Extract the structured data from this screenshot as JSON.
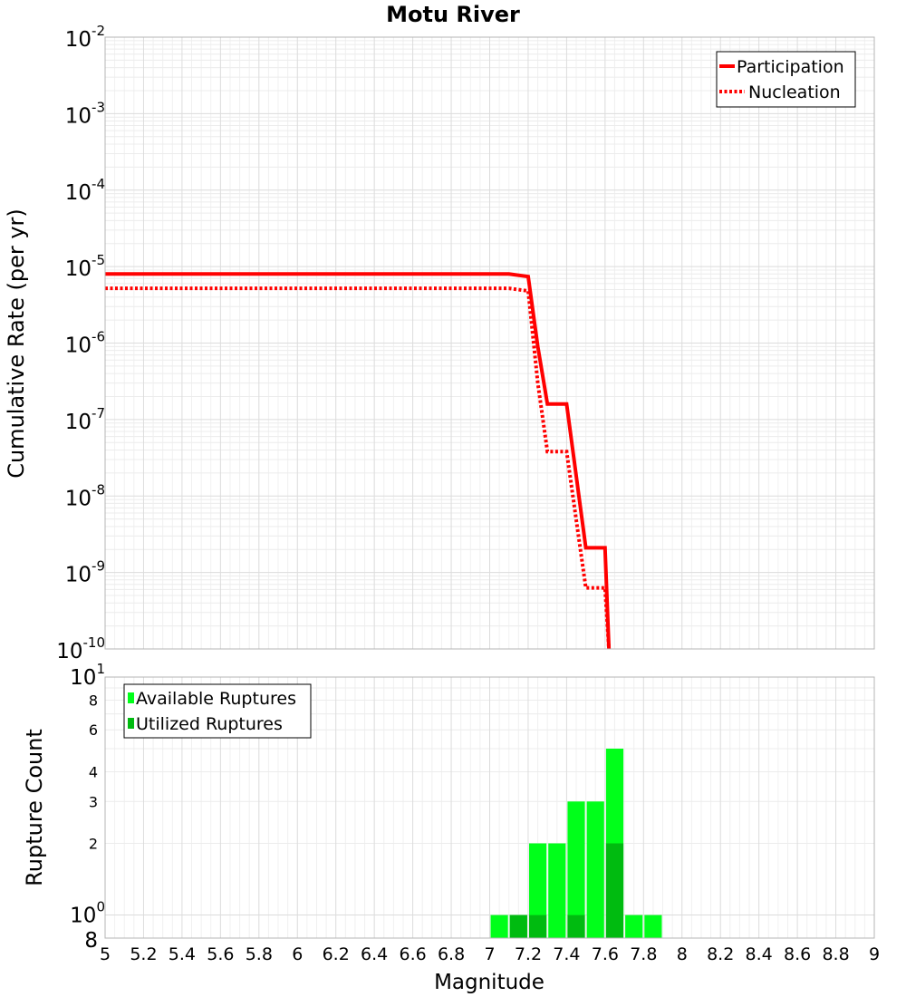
{
  "chart_data": [
    {
      "type": "line",
      "title": "Motu River",
      "ylabel": "Cumulative Rate (per yr)",
      "yscale": "log",
      "ylim": [
        1e-10,
        0.01
      ],
      "xlim": [
        5,
        9
      ],
      "grid": true,
      "legend_position": "top-right",
      "y_ticks": [
        {
          "base": "10",
          "exp": "-10"
        },
        {
          "base": "10",
          "exp": "-9"
        },
        {
          "base": "10",
          "exp": "-8"
        },
        {
          "base": "10",
          "exp": "-7"
        },
        {
          "base": "10",
          "exp": "-6"
        },
        {
          "base": "10",
          "exp": "-5"
        },
        {
          "base": "10",
          "exp": "-4"
        },
        {
          "base": "10",
          "exp": "-3"
        },
        {
          "base": "10",
          "exp": "-2"
        }
      ],
      "series": [
        {
          "name": "Participation",
          "style": "solid",
          "color": "#ff0000",
          "x": [
            5.0,
            7.1,
            7.2,
            7.25,
            7.3,
            7.4,
            7.5,
            7.6,
            7.62
          ],
          "y": [
            8e-06,
            8e-06,
            7.4e-06,
            9e-07,
            1.6e-07,
            1.6e-07,
            2.1e-09,
            2.1e-09,
            1e-10
          ]
        },
        {
          "name": "Nucleation",
          "style": "dotted",
          "color": "#ff0000",
          "x": [
            5.0,
            7.1,
            7.2,
            7.25,
            7.3,
            7.4,
            7.5,
            7.6,
            7.62
          ],
          "y": [
            5.2e-06,
            5.2e-06,
            4.8e-06,
            3e-07,
            3.8e-08,
            3.8e-08,
            6.3e-10,
            6.3e-10,
            1e-10
          ]
        }
      ]
    },
    {
      "type": "bar",
      "xlabel": "Magnitude",
      "ylabel": "Rupture Count",
      "yscale": "log",
      "ylim": [
        0.8,
        10
      ],
      "xlim": [
        5,
        9
      ],
      "grid": true,
      "legend_position": "top-left",
      "bin_width": 0.1,
      "x_ticks": [
        "5",
        "5.2",
        "5.4",
        "5.6",
        "5.8",
        "6",
        "6.2",
        "6.4",
        "6.6",
        "6.8",
        "7",
        "7.2",
        "7.4",
        "7.6",
        "7.8",
        "8",
        "8.2",
        "8.4",
        "8.6",
        "8.8",
        "9"
      ],
      "y_minor_ticks": [
        {
          "value": 8,
          "label": "8"
        },
        {
          "value": 6,
          "label": "6"
        },
        {
          "value": 4,
          "label": "4"
        },
        {
          "value": 3,
          "label": "3"
        },
        {
          "value": 2,
          "label": "2"
        }
      ],
      "y_major_ticks": [
        {
          "value": 1,
          "base": "10",
          "exp": "0"
        },
        {
          "value": 10,
          "base": "10",
          "exp": "1"
        }
      ],
      "y_bottom_label": "8",
      "bin_centers": [
        7.05,
        7.15,
        7.25,
        7.35,
        7.45,
        7.55,
        7.65,
        7.75,
        7.85
      ],
      "series": [
        {
          "name": "Available Ruptures",
          "color": "#00ff1a",
          "values": [
            1,
            1,
            2,
            2,
            3,
            3,
            5,
            1,
            1
          ]
        },
        {
          "name": "Utilized Ruptures",
          "color": "#00bb10",
          "values": [
            0,
            1,
            1,
            0,
            1,
            0,
            2,
            0,
            0
          ]
        }
      ]
    }
  ]
}
